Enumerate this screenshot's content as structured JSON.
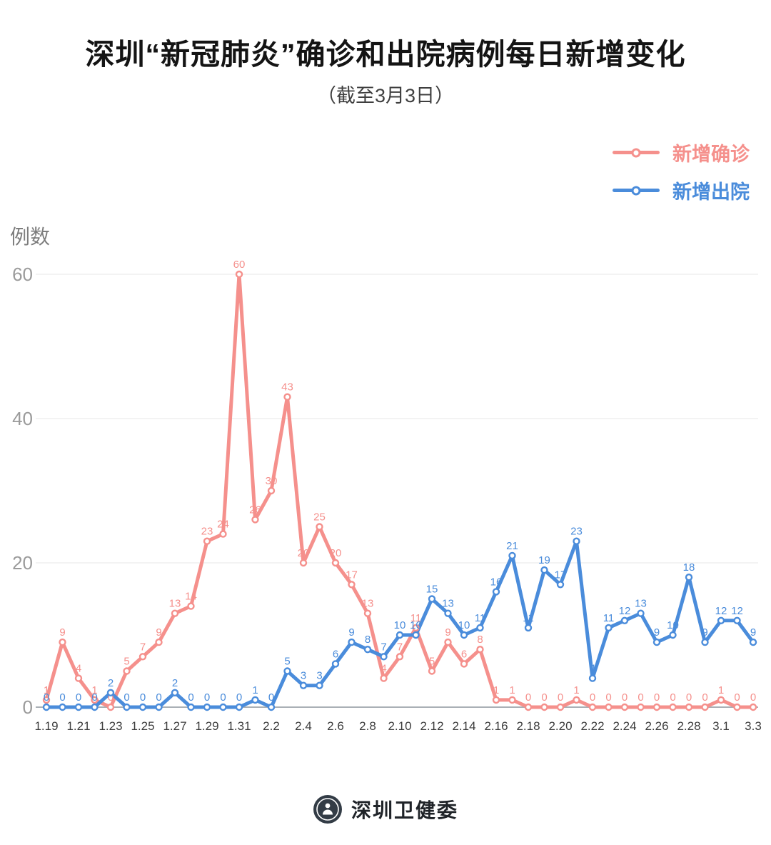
{
  "title": "深圳“新冠肺炎”确诊和出院病例每日新增变化",
  "subtitle": "（截至3月3日）",
  "y_axis_title": "例数",
  "legend": {
    "items": [
      {
        "label": "新增确诊",
        "color": "#F5908C"
      },
      {
        "label": "新增出院",
        "color": "#4A8CDB"
      }
    ]
  },
  "footer": {
    "brand": "深圳卫健委",
    "logo_icon": "shenzhen-health-commission-seal"
  },
  "chart_data": {
    "type": "line",
    "title": "深圳“新冠肺炎”确诊和出院病例每日新增变化（截至3月3日）",
    "xlabel": "",
    "ylabel": "例数",
    "ylim": [
      0,
      60
    ],
    "yticks": [
      0,
      20,
      40,
      60
    ],
    "grid": true,
    "legend_position": "top-right",
    "x_tick_step": 2,
    "x": [
      "1.19",
      "1.20",
      "1.21",
      "1.22",
      "1.23",
      "1.24",
      "1.25",
      "1.26",
      "1.27",
      "1.28",
      "1.29",
      "1.30",
      "1.31",
      "2.1",
      "2.2",
      "2.3",
      "2.4",
      "2.5",
      "2.6",
      "2.7",
      "2.8",
      "2.9",
      "2.10",
      "2.11",
      "2.12",
      "2.13",
      "2.14",
      "2.15",
      "2.16",
      "2.17",
      "2.18",
      "2.19",
      "2.20",
      "2.21",
      "2.22",
      "2.23",
      "2.24",
      "2.25",
      "2.26",
      "2.27",
      "2.28",
      "2.29",
      "3.1",
      "3.2",
      "3.3"
    ],
    "series": [
      {
        "name": "新增确诊",
        "color": "#F5908C",
        "values": [
          1,
          9,
          4,
          1,
          0,
          5,
          7,
          9,
          13,
          14,
          23,
          24,
          60,
          26,
          30,
          43,
          20,
          25,
          20,
          17,
          13,
          4,
          7,
          11,
          5,
          9,
          6,
          8,
          1,
          1,
          0,
          0,
          0,
          1,
          0,
          0,
          0,
          0,
          0,
          0,
          0,
          0,
          1,
          0,
          0
        ]
      },
      {
        "name": "新增出院",
        "color": "#4A8CDB",
        "values": [
          0,
          0,
          0,
          0,
          2,
          0,
          0,
          0,
          2,
          0,
          0,
          0,
          0,
          1,
          0,
          5,
          3,
          3,
          6,
          9,
          8,
          7,
          10,
          10,
          15,
          13,
          10,
          11,
          16,
          21,
          11,
          19,
          17,
          23,
          4,
          11,
          12,
          13,
          9,
          10,
          18,
          9,
          12,
          12,
          9
        ]
      }
    ]
  }
}
